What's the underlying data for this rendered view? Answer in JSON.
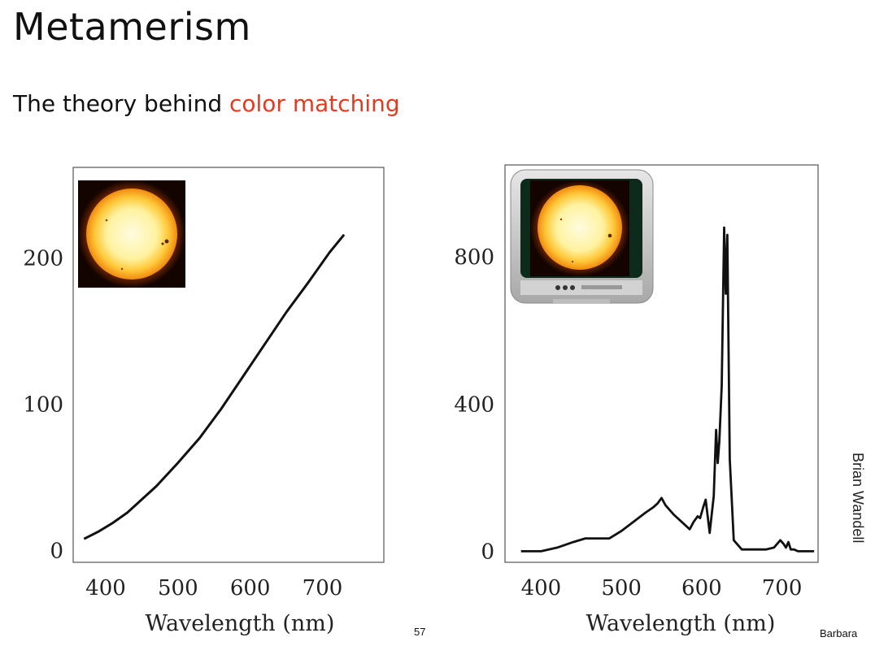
{
  "slide": {
    "title": "Metamerism",
    "subtitle_prefix": "The theory behind ",
    "subtitle_accent": "color matching",
    "accent_color": "#e53a1f",
    "page_number": "57",
    "credit": "Brian Wandell",
    "footer_author": "Barbara"
  },
  "images": {
    "sun_icon": "sun-photo",
    "tv_icon": "crt-television-showing-sun"
  },
  "chart_data": [
    {
      "type": "line",
      "title": "",
      "xlabel": "Wavelength (nm)",
      "ylabel": "",
      "xlim": [
        355,
        785
      ],
      "ylim": [
        -8,
        262
      ],
      "x_ticks": [
        "400",
        "500",
        "600",
        "700"
      ],
      "y_ticks": [
        "0",
        "100",
        "200"
      ],
      "x_tick_values": [
        400,
        500,
        600,
        700
      ],
      "y_tick_values": [
        0,
        100,
        200
      ],
      "grid": false,
      "series": [
        {
          "x": [
            370,
            390,
            410,
            430,
            450,
            470,
            500,
            530,
            560,
            590,
            620,
            650,
            680,
            710,
            730
          ],
          "y": [
            8,
            13,
            19,
            26,
            35,
            44,
            60,
            77,
            97,
            119,
            141,
            163,
            183,
            204,
            216
          ]
        }
      ]
    },
    {
      "type": "line",
      "title": "",
      "xlabel": "Wavelength (nm)",
      "ylabel": "",
      "xlim": [
        355,
        745
      ],
      "ylim": [
        -30,
        1050
      ],
      "x_ticks": [
        "400",
        "500",
        "600",
        "700"
      ],
      "y_ticks": [
        "0",
        "400",
        "800"
      ],
      "x_tick_values": [
        400,
        500,
        600,
        700
      ],
      "y_tick_values": [
        0,
        400,
        800
      ],
      "grid": false,
      "series": [
        {
          "x": [
            375,
            400,
            420,
            440,
            455,
            470,
            485,
            500,
            515,
            530,
            540,
            545,
            550,
            555,
            565,
            575,
            585,
            590,
            595,
            598,
            602,
            605,
            610,
            615,
            618,
            620,
            622,
            625,
            628,
            630,
            632,
            635,
            640,
            650,
            660,
            670,
            680,
            690,
            698,
            702,
            705,
            708,
            711,
            715,
            720,
            740
          ],
          "y": [
            0,
            0,
            10,
            25,
            35,
            35,
            35,
            55,
            80,
            105,
            120,
            130,
            145,
            125,
            100,
            80,
            60,
            80,
            95,
            90,
            120,
            140,
            50,
            150,
            330,
            240,
            300,
            450,
            880,
            700,
            860,
            250,
            30,
            5,
            5,
            5,
            5,
            10,
            30,
            20,
            10,
            25,
            5,
            5,
            0,
            0
          ]
        }
      ]
    }
  ]
}
